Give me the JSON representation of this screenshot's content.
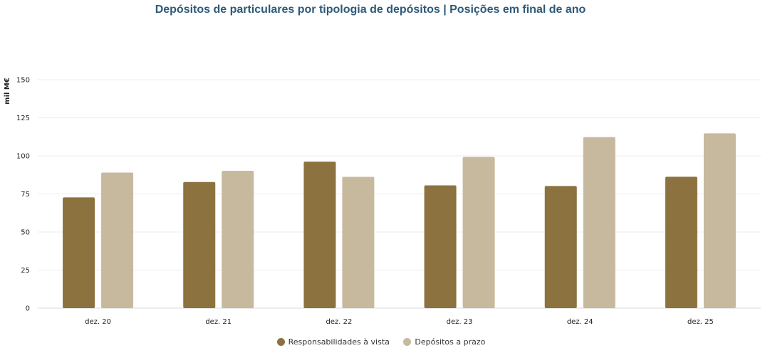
{
  "chart_data": {
    "type": "bar",
    "title": "Depósitos de particulares por tipologia de depósitos | Posições em final de ano",
    "xlabel": "",
    "ylabel": "mil M€",
    "ylim": [
      0,
      150
    ],
    "yticks": [
      0,
      25,
      50,
      75,
      100,
      125,
      150
    ],
    "categories": [
      "dez. 20",
      "dez. 21",
      "dez. 22",
      "dez. 23",
      "dez. 24",
      "dez. 25"
    ],
    "series": [
      {
        "name": "Responsabilidades à vista",
        "color": "#8b723e",
        "values": [
          72.7,
          82.8,
          96.2,
          80.6,
          80.2,
          86.3
        ]
      },
      {
        "name": "Depósitos a prazo",
        "color": "#c7b99d",
        "values": [
          89.0,
          90.2,
          86.2,
          99.3,
          112.3,
          114.8
        ]
      }
    ],
    "grid": true,
    "legend_position": "bottom-center"
  }
}
